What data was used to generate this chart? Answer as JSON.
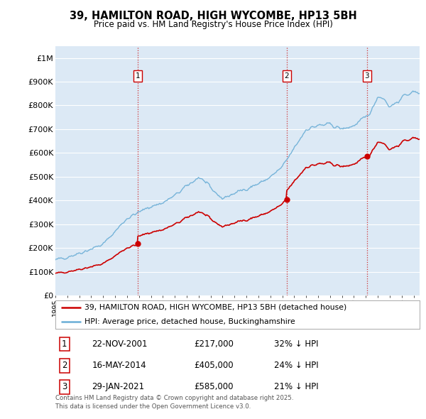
{
  "title": "39, HAMILTON ROAD, HIGH WYCOMBE, HP13 5BH",
  "subtitle": "Price paid vs. HM Land Registry's House Price Index (HPI)",
  "background_color": "#ffffff",
  "plot_bg_color": "#dce9f5",
  "grid_color": "#ffffff",
  "ylim": [
    0,
    1050000
  ],
  "yticks": [
    0,
    100000,
    200000,
    300000,
    400000,
    500000,
    600000,
    700000,
    800000,
    900000,
    1000000
  ],
  "ytick_labels": [
    "£0",
    "£100K",
    "£200K",
    "£300K",
    "£400K",
    "£500K",
    "£600K",
    "£700K",
    "£800K",
    "£900K",
    "£1M"
  ],
  "sale_dates_decimal": [
    2001.896,
    2014.37,
    2021.079
  ],
  "sale_prices": [
    217000,
    405000,
    585000
  ],
  "sale_labels": [
    "1",
    "2",
    "3"
  ],
  "sale_info": [
    {
      "label": "1",
      "date": "22-NOV-2001",
      "price": "£217,000",
      "pct": "32% ↓ HPI"
    },
    {
      "label": "2",
      "date": "16-MAY-2014",
      "price": "£405,000",
      "pct": "24% ↓ HPI"
    },
    {
      "label": "3",
      "date": "29-JAN-2021",
      "price": "£585,000",
      "pct": "21% ↓ HPI"
    }
  ],
  "legend_line1": "39, HAMILTON ROAD, HIGH WYCOMBE, HP13 5BH (detached house)",
  "legend_line2": "HPI: Average price, detached house, Buckinghamshire",
  "footer": "Contains HM Land Registry data © Crown copyright and database right 2025.\nThis data is licensed under the Open Government Licence v3.0.",
  "hpi_color": "#6baed6",
  "sale_line_color": "#cc0000",
  "sale_dot_color": "#cc0000",
  "vline_color": "#cc0000",
  "xlim_start": 1995.0,
  "xlim_end": 2025.5,
  "hpi_seed": 42,
  "hpi_noise_scale": 8000,
  "red_noise_scale": 6000
}
